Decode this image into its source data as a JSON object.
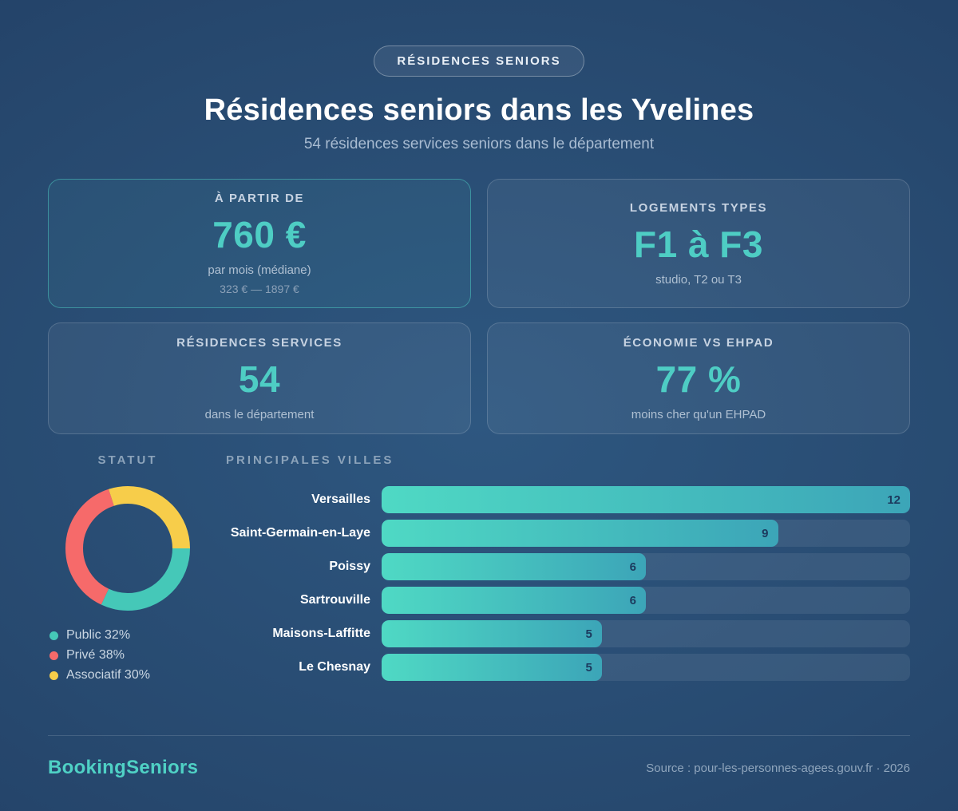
{
  "header": {
    "badge": "RÉSIDENCES SENIORS",
    "title": "Résidences seniors dans les Yvelines",
    "subtitle": "54 résidences services seniors dans le département"
  },
  "cards": [
    {
      "label": "À PARTIR DE",
      "value": "760 €",
      "sub": "par mois (médiane)",
      "range": "323 € — 1897 €"
    },
    {
      "label": "LOGEMENTS TYPES",
      "value": "F1 à F3",
      "sub": "studio, T2 ou T3"
    },
    {
      "label": "RÉSIDENCES SERVICES",
      "value": "54",
      "sub": "dans le département"
    },
    {
      "label": "ÉCONOMIE VS EHPAD",
      "value": "77 %",
      "sub": "moins cher qu'un EHPAD"
    }
  ],
  "statut": {
    "heading": "STATUT",
    "legend": [
      "Public 32%",
      "Privé 38%",
      "Associatif 30%"
    ]
  },
  "villes": {
    "heading": "PRINCIPALES VILLES"
  },
  "footer": {
    "brand": "BookingSeniors",
    "source": "Source : pour-les-personnes-agees.gouv.fr · 2026"
  },
  "colors": {
    "accent_teal": "#4ecdc4",
    "donut_public": "#45c8b8",
    "donut_prive": "#f66a6a",
    "donut_associatif": "#f7cd4a",
    "bar_gradient_start": "#4fd9c4",
    "bar_gradient_end": "#3ca5b8",
    "bar_value_text": "#1c3a5e",
    "background_dark": "#1f3a60",
    "background_light": "#2e5780"
  },
  "chart_data": [
    {
      "type": "pie",
      "subtype": "donut",
      "title": "STATUT",
      "labels": [
        "Public",
        "Privé",
        "Associatif"
      ],
      "values": [
        32,
        38,
        30
      ],
      "colors": [
        "#45c8b8",
        "#f66a6a",
        "#f7cd4a"
      ],
      "start_angle_deg_from_east": 0,
      "direction": "clockwise",
      "legend_position": "bottom-left"
    },
    {
      "type": "bar",
      "orientation": "horizontal",
      "title": "PRINCIPALES VILLES",
      "categories": [
        "Versailles",
        "Saint-Germain-en-Laye",
        "Poissy",
        "Sartrouville",
        "Maisons-Laffitte",
        "Le Chesnay"
      ],
      "values": [
        12,
        9,
        6,
        6,
        5,
        5
      ],
      "xlim": [
        0,
        12
      ],
      "value_labels": true,
      "grid": false
    }
  ]
}
